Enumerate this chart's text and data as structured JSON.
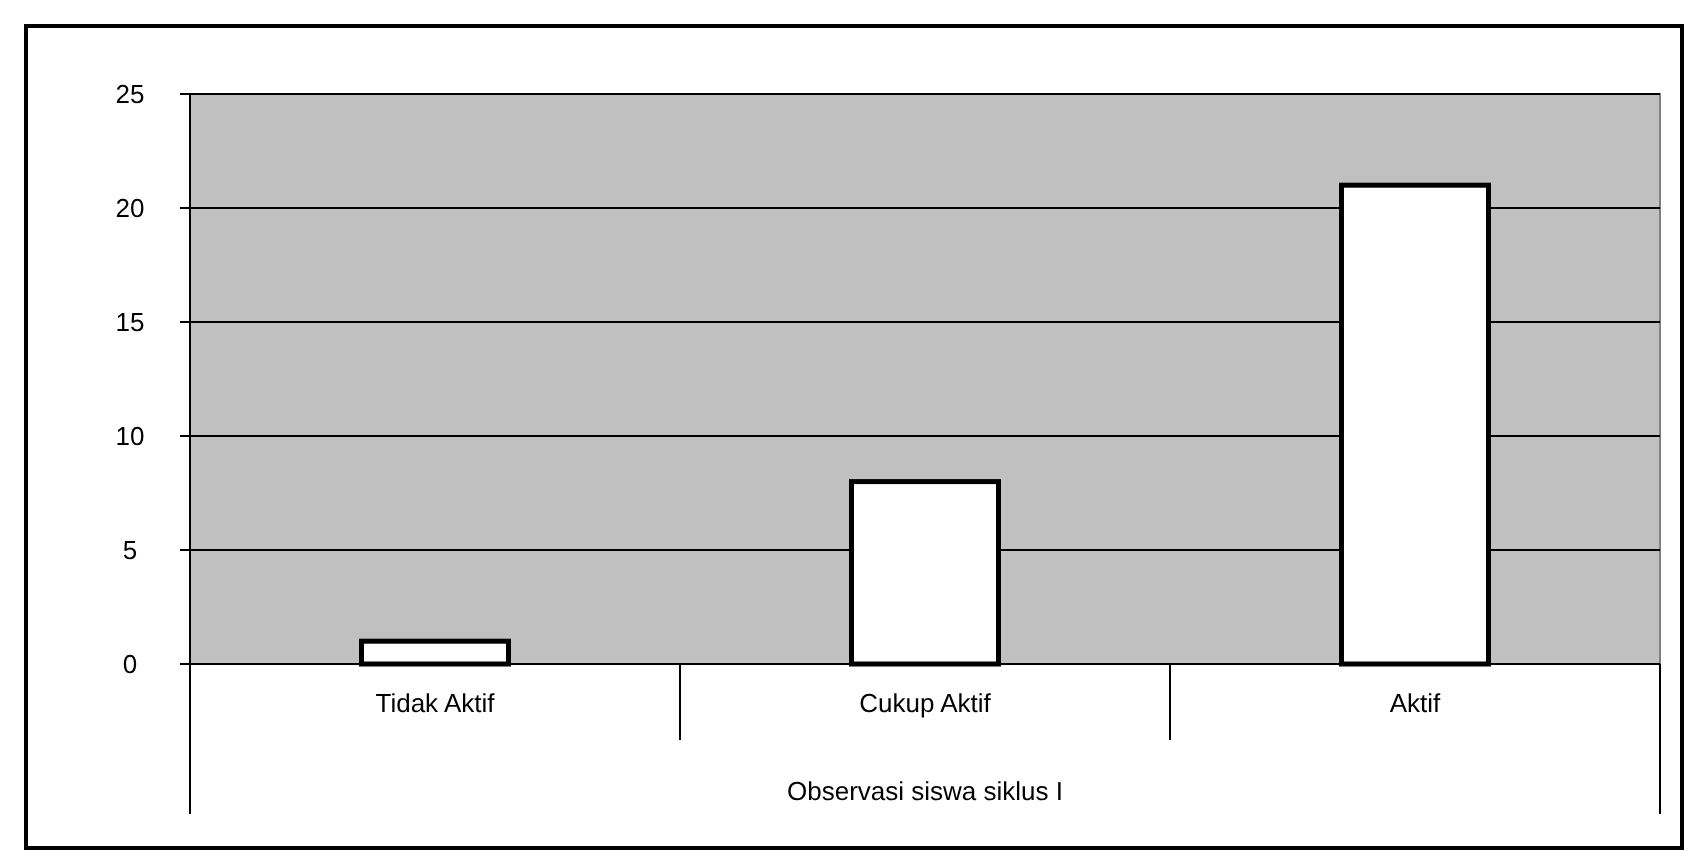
{
  "chart_data": {
    "type": "bar",
    "xlabel": "Observasi siswa siklus I",
    "categories": [
      "Tidak Aktif",
      "Cukup Aktif",
      "Aktif"
    ],
    "values": [
      1,
      8,
      21
    ],
    "color": "#ffffff",
    "ylim": [
      0,
      25
    ],
    "yticks": [
      0,
      5,
      10,
      15,
      20,
      25
    ],
    "grid": "y"
  }
}
